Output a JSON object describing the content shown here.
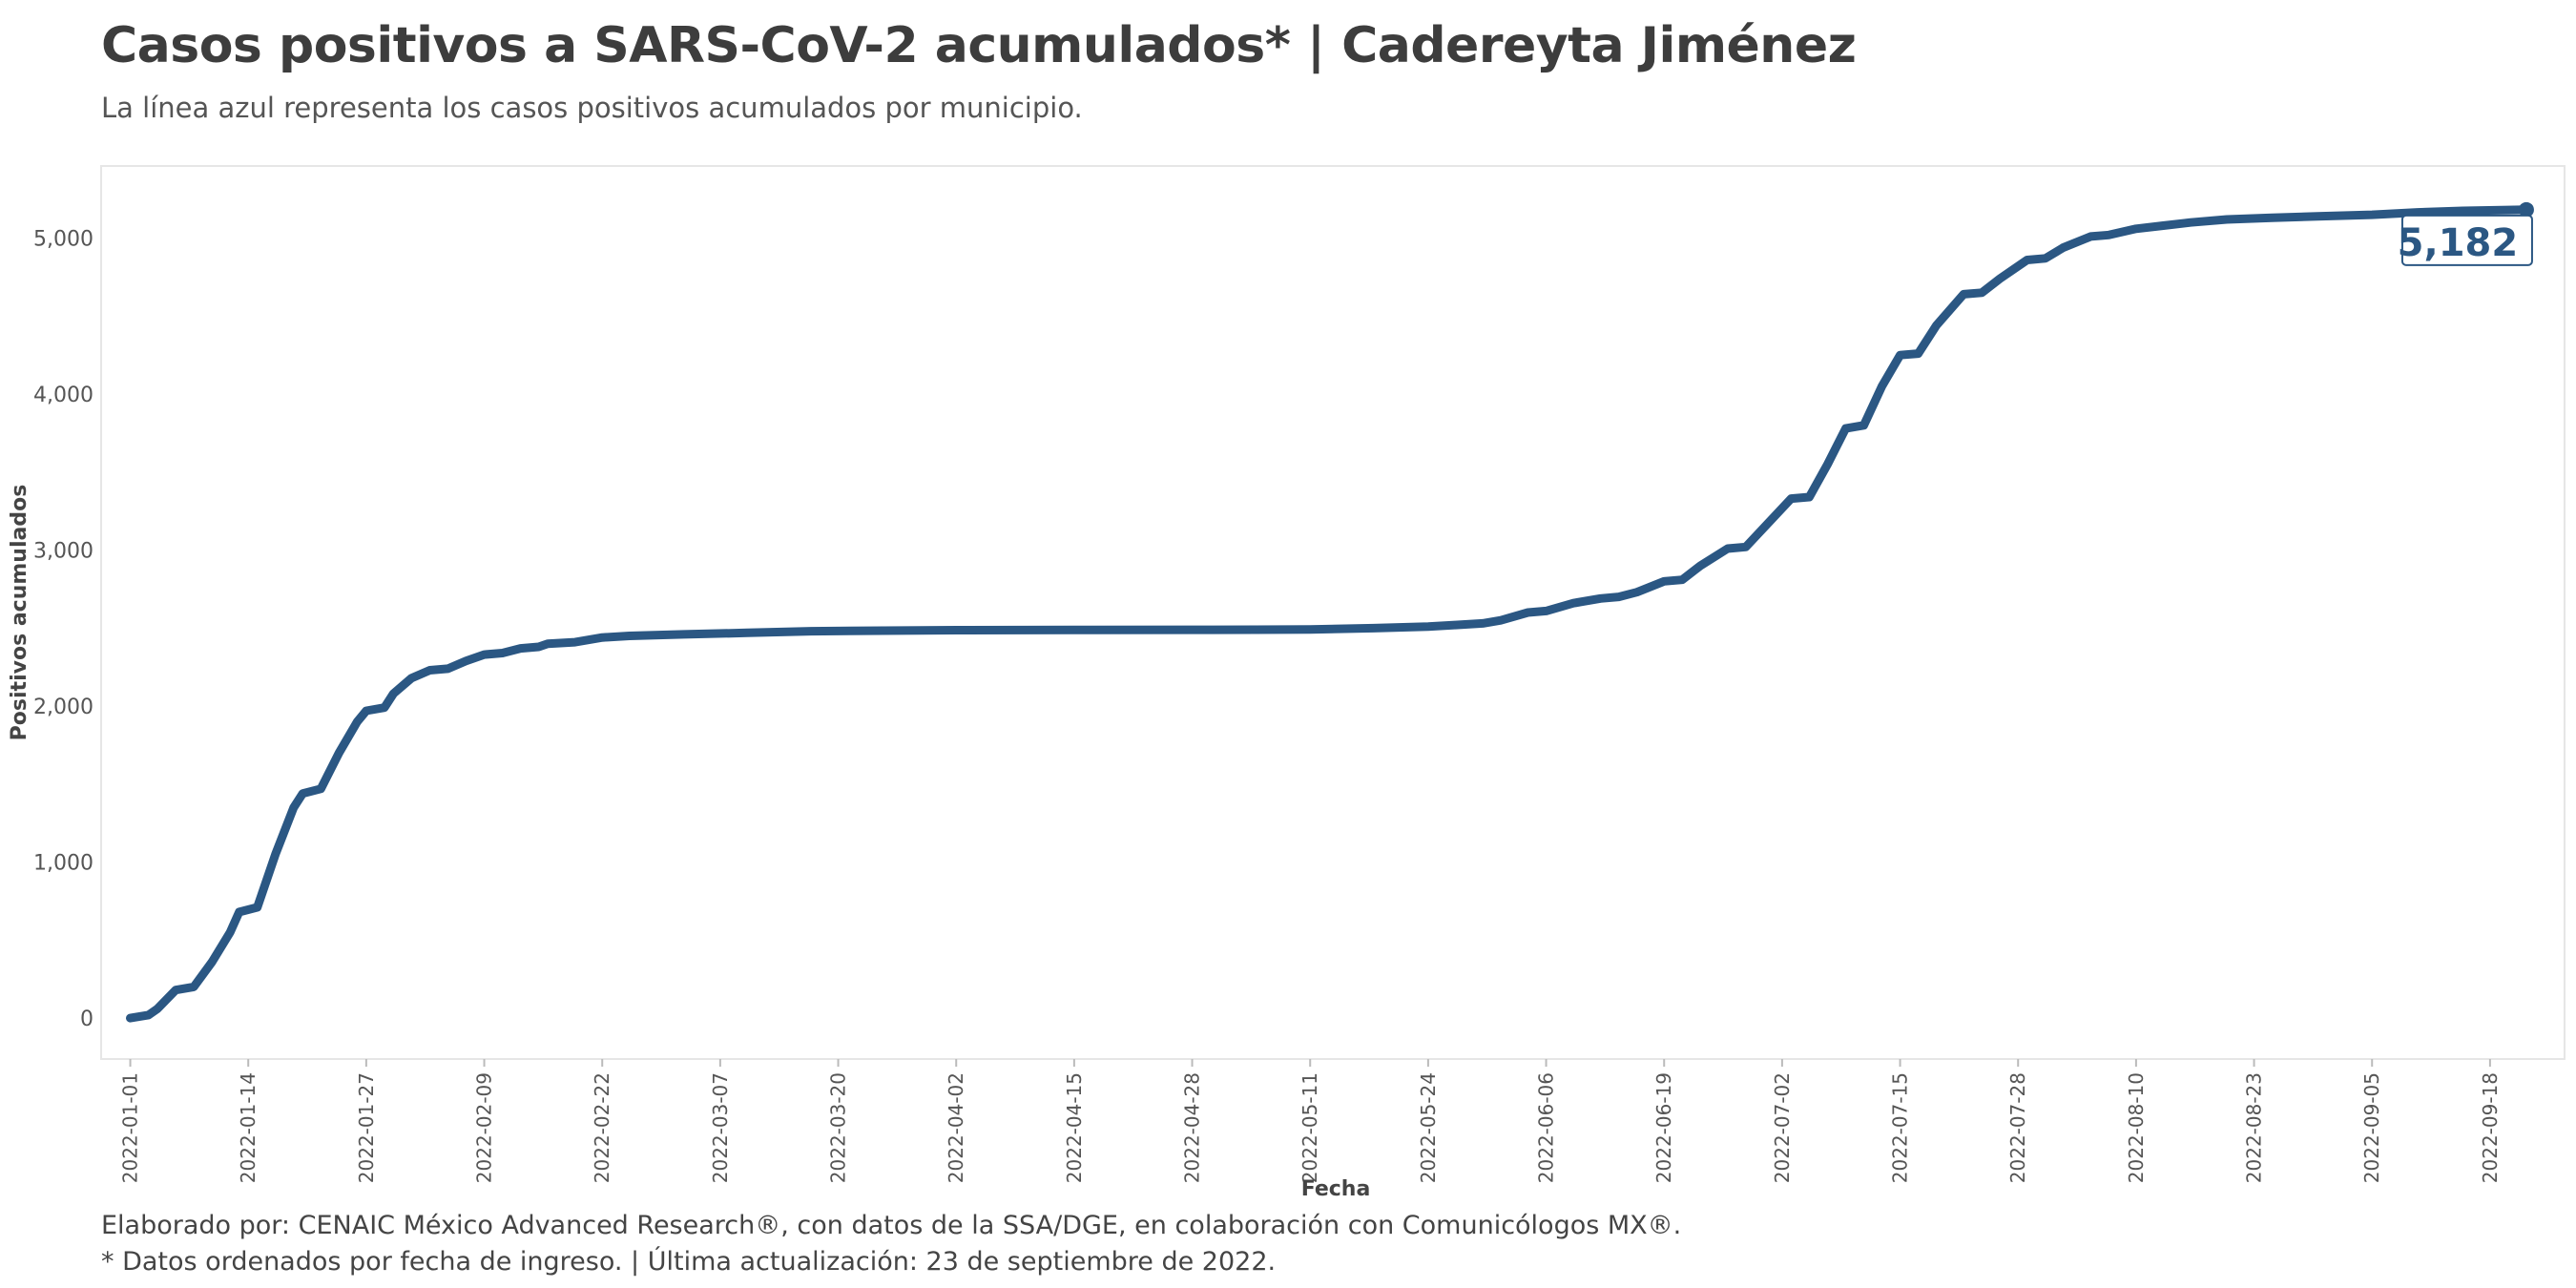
{
  "header": {
    "title": "Casos positivos a SARS-CoV-2 acumulados* | Cadereyta Jiménez",
    "subtitle": "La línea azul representa los casos positivos acumulados por municipio."
  },
  "footer": {
    "line1": "Elaborado por: CENAIC México Advanced Research®, con datos de la SSA/DGE, en colaboración con Comunicólogos MX®.",
    "line2": "* Datos ordenados por fecha de ingreso. | Última actualización: 23 de septiembre de 2022."
  },
  "colors": {
    "line": "#2b5783",
    "panel_border": "#e6e6e6",
    "tick_text": "#555555"
  },
  "chart_data": {
    "type": "line",
    "xlabel": "Fecha",
    "ylabel": "Positivos acumulados",
    "grid": false,
    "xlim": [
      "2021-12-29",
      "2022-09-26"
    ],
    "ylim": [
      -250,
      5450
    ],
    "y_ticks": [
      0,
      1000,
      2000,
      3000,
      4000,
      5000
    ],
    "y_tick_labels": [
      "0",
      "1,000",
      "2,000",
      "3,000",
      "4,000",
      "5,000"
    ],
    "x_ticks": [
      "2022-01-01",
      "2022-01-14",
      "2022-01-27",
      "2022-02-09",
      "2022-02-22",
      "2022-03-07",
      "2022-03-20",
      "2022-04-02",
      "2022-04-15",
      "2022-04-28",
      "2022-05-11",
      "2022-05-24",
      "2022-06-06",
      "2022-06-19",
      "2022-07-02",
      "2022-07-15",
      "2022-07-28",
      "2022-08-10",
      "2022-08-23",
      "2022-09-05",
      "2022-09-18"
    ],
    "end_label": "5,182",
    "series": [
      {
        "points": [
          [
            "2022-01-01",
            0
          ],
          [
            "2022-01-03",
            20
          ],
          [
            "2022-01-04",
            60
          ],
          [
            "2022-01-06",
            180
          ],
          [
            "2022-01-08",
            200
          ],
          [
            "2022-01-10",
            360
          ],
          [
            "2022-01-12",
            550
          ],
          [
            "2022-01-13",
            680
          ],
          [
            "2022-01-15",
            710
          ],
          [
            "2022-01-17",
            1050
          ],
          [
            "2022-01-19",
            1350
          ],
          [
            "2022-01-20",
            1440
          ],
          [
            "2022-01-22",
            1470
          ],
          [
            "2022-01-24",
            1700
          ],
          [
            "2022-01-26",
            1900
          ],
          [
            "2022-01-27",
            1970
          ],
          [
            "2022-01-29",
            1990
          ],
          [
            "2022-01-30",
            2080
          ],
          [
            "2022-02-01",
            2180
          ],
          [
            "2022-02-03",
            2230
          ],
          [
            "2022-02-05",
            2240
          ],
          [
            "2022-02-07",
            2290
          ],
          [
            "2022-02-09",
            2330
          ],
          [
            "2022-02-11",
            2340
          ],
          [
            "2022-02-13",
            2370
          ],
          [
            "2022-02-15",
            2380
          ],
          [
            "2022-02-16",
            2400
          ],
          [
            "2022-02-19",
            2410
          ],
          [
            "2022-02-22",
            2440
          ],
          [
            "2022-02-25",
            2450
          ],
          [
            "2022-03-03",
            2460
          ],
          [
            "2022-03-10",
            2470
          ],
          [
            "2022-03-17",
            2480
          ],
          [
            "2022-03-25",
            2484
          ],
          [
            "2022-04-02",
            2487
          ],
          [
            "2022-04-15",
            2488
          ],
          [
            "2022-04-28",
            2489
          ],
          [
            "2022-05-05",
            2490
          ],
          [
            "2022-05-11",
            2492
          ],
          [
            "2022-05-18",
            2500
          ],
          [
            "2022-05-24",
            2510
          ],
          [
            "2022-05-27",
            2520
          ],
          [
            "2022-05-30",
            2530
          ],
          [
            "2022-06-01",
            2550
          ],
          [
            "2022-06-04",
            2600
          ],
          [
            "2022-06-06",
            2610
          ],
          [
            "2022-06-09",
            2660
          ],
          [
            "2022-06-12",
            2690
          ],
          [
            "2022-06-14",
            2700
          ],
          [
            "2022-06-16",
            2730
          ],
          [
            "2022-06-19",
            2800
          ],
          [
            "2022-06-21",
            2810
          ],
          [
            "2022-06-23",
            2900
          ],
          [
            "2022-06-26",
            3010
          ],
          [
            "2022-06-28",
            3020
          ],
          [
            "2022-07-03",
            3330
          ],
          [
            "2022-07-05",
            3340
          ],
          [
            "2022-07-07",
            3550
          ],
          [
            "2022-07-09",
            3780
          ],
          [
            "2022-07-11",
            3800
          ],
          [
            "2022-07-13",
            4050
          ],
          [
            "2022-07-15",
            4250
          ],
          [
            "2022-07-17",
            4260
          ],
          [
            "2022-07-19",
            4440
          ],
          [
            "2022-07-22",
            4640
          ],
          [
            "2022-07-24",
            4650
          ],
          [
            "2022-07-26",
            4740
          ],
          [
            "2022-07-29",
            4860
          ],
          [
            "2022-07-31",
            4870
          ],
          [
            "2022-08-02",
            4940
          ],
          [
            "2022-08-05",
            5010
          ],
          [
            "2022-08-07",
            5020
          ],
          [
            "2022-08-10",
            5060
          ],
          [
            "2022-08-13",
            5080
          ],
          [
            "2022-08-16",
            5100
          ],
          [
            "2022-08-20",
            5120
          ],
          [
            "2022-08-25",
            5130
          ],
          [
            "2022-08-30",
            5140
          ],
          [
            "2022-09-05",
            5150
          ],
          [
            "2022-09-10",
            5165
          ],
          [
            "2022-09-15",
            5175
          ],
          [
            "2022-09-20",
            5180
          ],
          [
            "2022-09-22",
            5182
          ]
        ]
      }
    ]
  }
}
